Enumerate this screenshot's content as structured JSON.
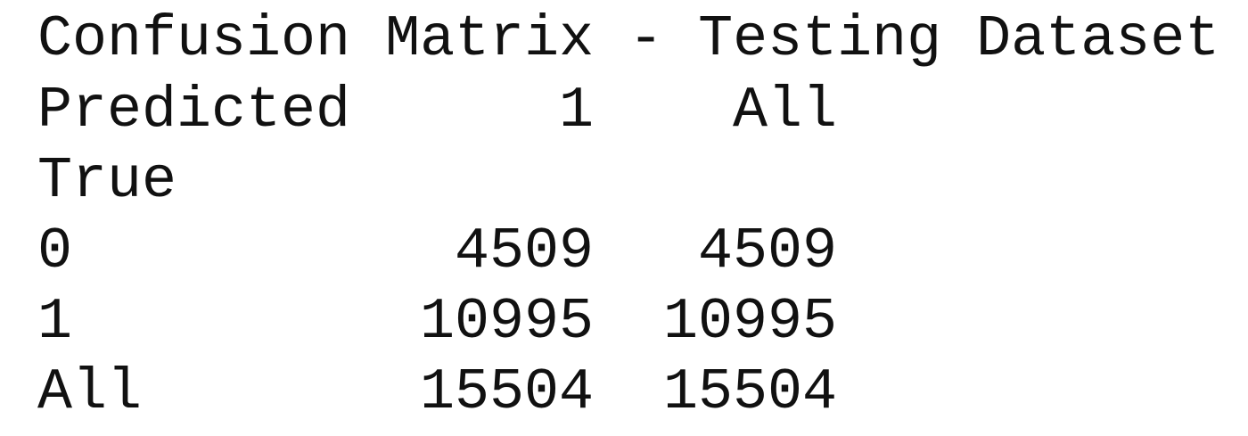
{
  "title": "Confusion Matrix - Testing Dataset",
  "table": {
    "columns_name": "Predicted",
    "columns": [
      "1",
      "All"
    ],
    "index_name": "True",
    "rows": [
      {
        "label": "0",
        "cells": [
          4509,
          4509
        ]
      },
      {
        "label": "1",
        "cells": [
          10995,
          10995
        ]
      },
      {
        "label": "All",
        "cells": [
          15504,
          15504
        ]
      }
    ]
  }
}
